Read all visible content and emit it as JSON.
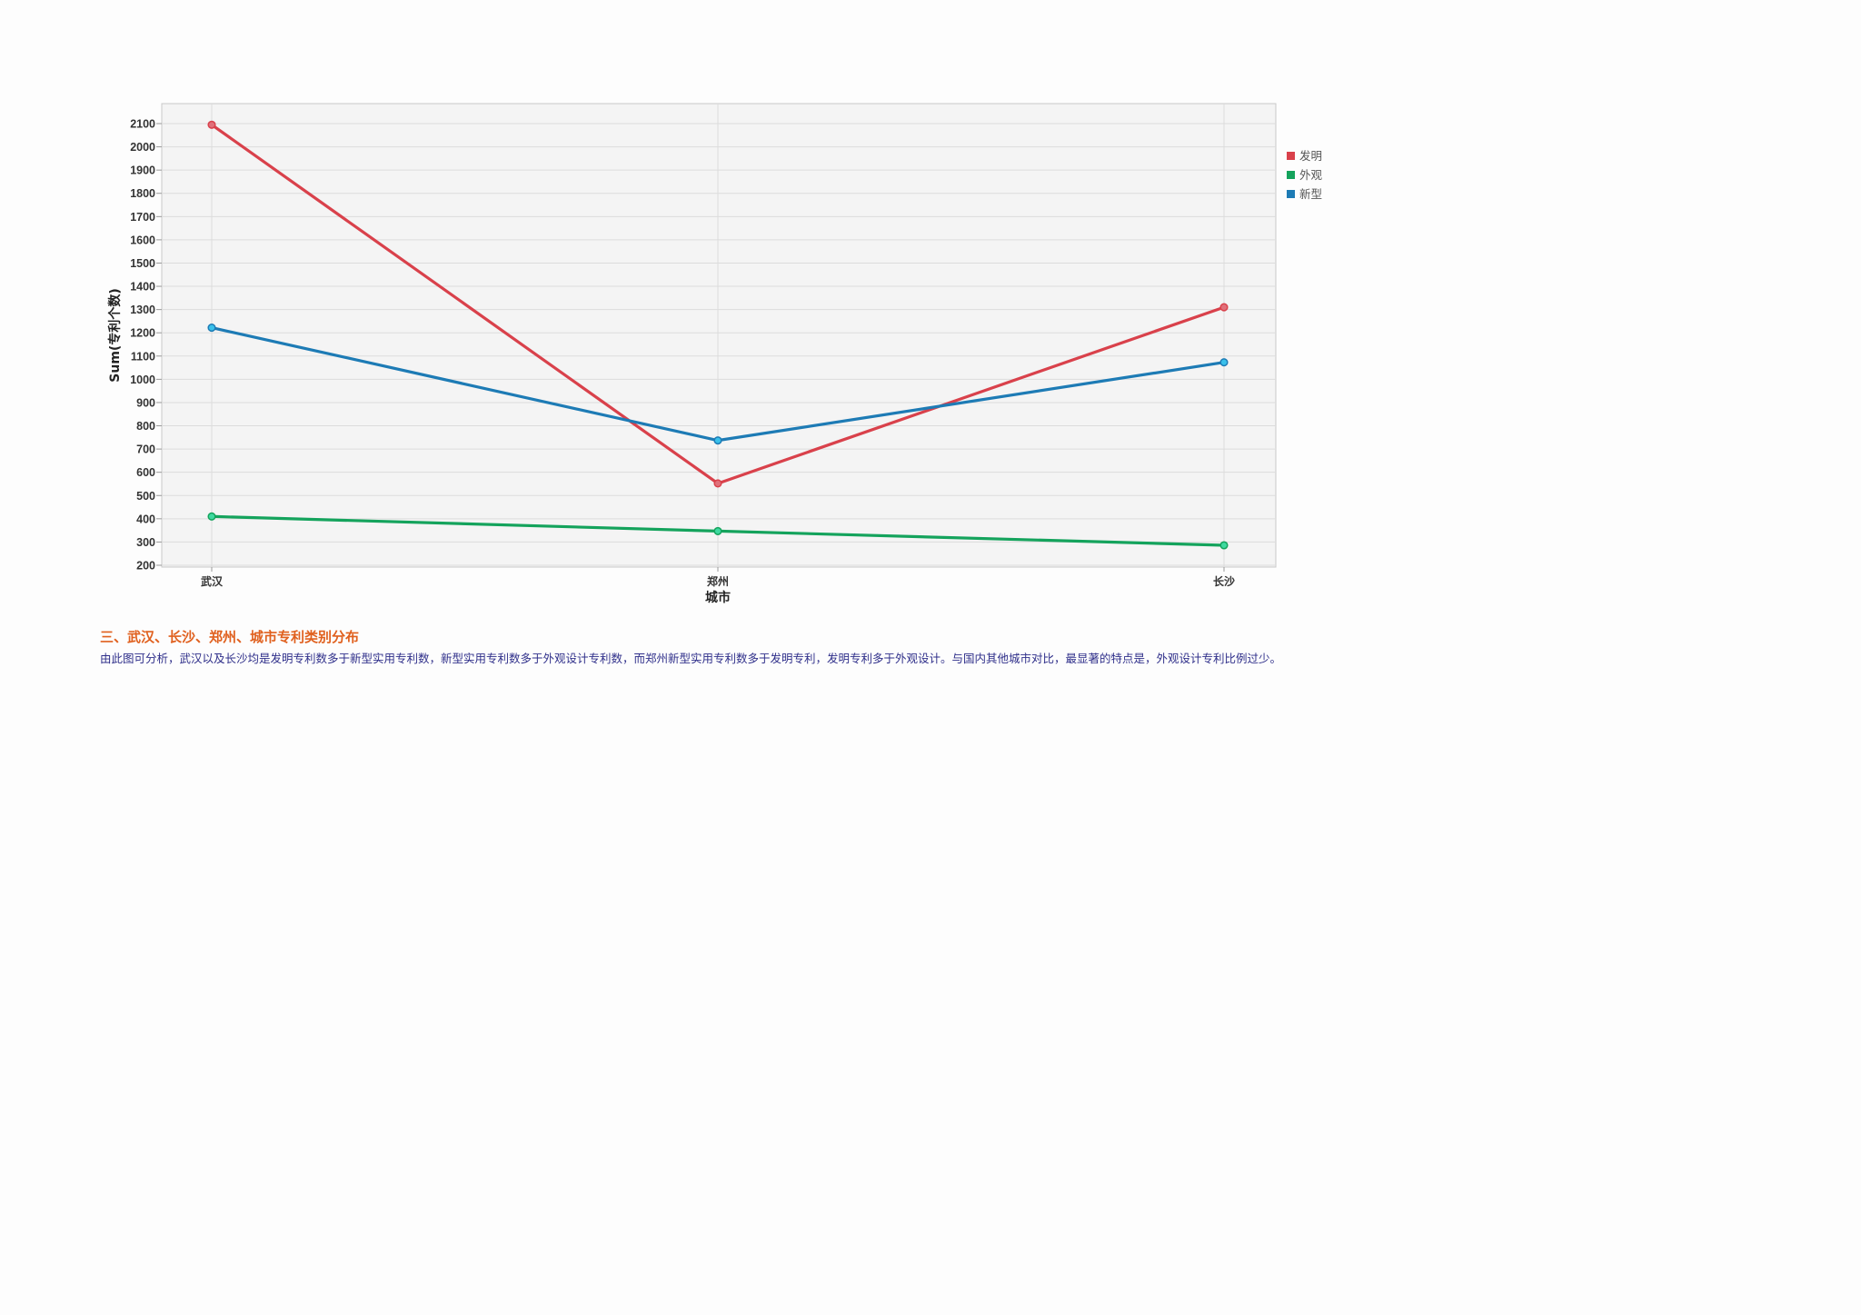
{
  "chart_data": {
    "type": "line",
    "title": "",
    "xlabel": "城市",
    "ylabel": "Sum(专利个数)",
    "categories": [
      "武汉",
      "郑州",
      "长沙"
    ],
    "ylim": [
      200,
      2100
    ],
    "yticks": [
      200,
      300,
      400,
      500,
      600,
      700,
      800,
      900,
      1000,
      1100,
      1200,
      1300,
      1400,
      1500,
      1600,
      1700,
      1800,
      1900,
      2000,
      2100
    ],
    "grid": true,
    "legend_position": "right-top",
    "series": [
      {
        "name": "发明",
        "color": "#d9414b",
        "values": [
          2095,
          552,
          1310
        ]
      },
      {
        "name": "外观",
        "color": "#14a35c",
        "values": [
          410,
          347,
          286
        ]
      },
      {
        "name": "新型",
        "color": "#1d7bb5",
        "values": [
          1222,
          737,
          1073
        ]
      }
    ]
  },
  "section": {
    "heading": "三、武汉、长沙、郑州、城市专利类别分布",
    "body": "由此图可分析，武汉以及长沙均是发明专利数多于新型实用专利数，新型实用专利数多于外观设计专利数，而郑州新型实用专利数多于发明专利，发明专利多于外观设计。与国内其他城市对比，最显著的特点是，外观设计专利比例过少。"
  }
}
